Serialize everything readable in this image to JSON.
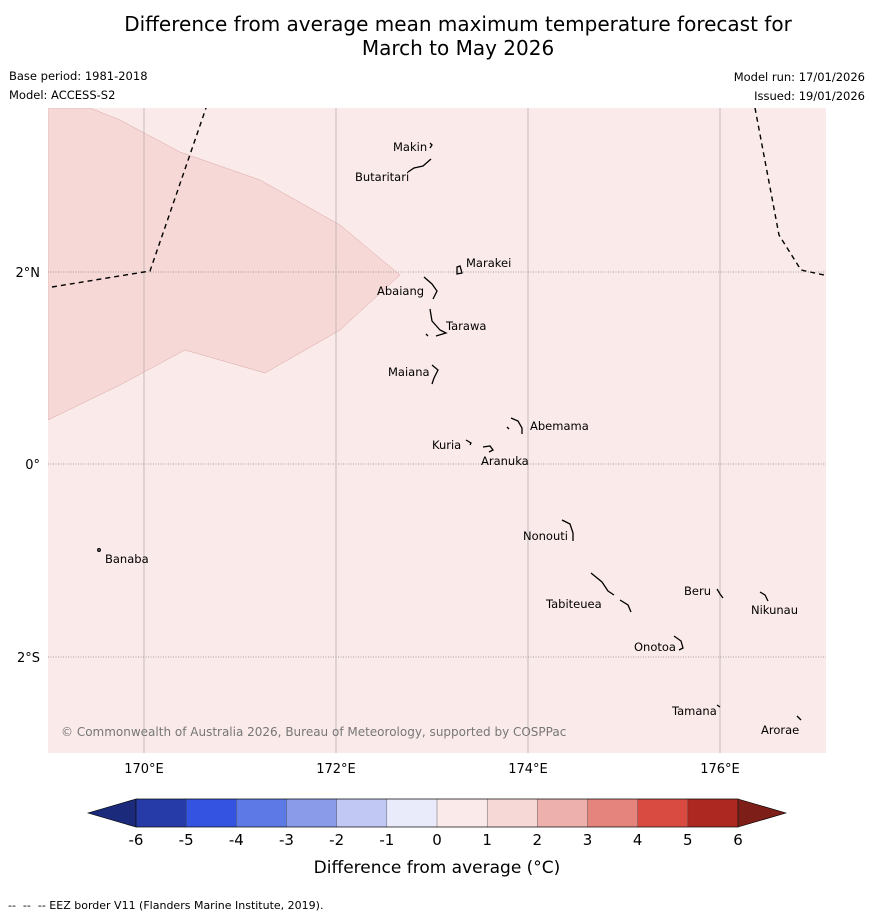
{
  "title_line1": "Difference from average mean maximum temperature forecast for",
  "title_line2": "March to May 2026",
  "meta": {
    "base_period": "Base period: 1981-2018",
    "model": "Model: ACCESS-S2",
    "model_run": "Model run: 17/01/2026",
    "issued": "Issued: 19/01/2026"
  },
  "axes": {
    "lon_ticks": [
      "170°E",
      "172°E",
      "174°E",
      "176°E"
    ],
    "lat_ticks": [
      "2°N",
      "0°",
      "2°S"
    ]
  },
  "islands": [
    "Makin",
    "Butaritari",
    "Marakei",
    "Abaiang",
    "Tarawa",
    "Maiana",
    "Abemama",
    "Kuria",
    "Aranuka",
    "Nonouti",
    "Banaba",
    "Beru",
    "Nikunau",
    "Tabiteuea",
    "Onotoa",
    "Tamana",
    "Arorae"
  ],
  "copyright": "© Commonwealth of Australia 2026, Bureau of Meteorology, supported by COSPPac",
  "colorbar": {
    "ticks": [
      "-6",
      "-5",
      "-4",
      "-3",
      "-2",
      "-1",
      "0",
      "1",
      "2",
      "3",
      "4",
      "5",
      "6"
    ],
    "colors": [
      "#263ba8",
      "#3453e0",
      "#5d79e6",
      "#8a9bea",
      "#c2c8f4",
      "#e9ebfa",
      "#fbeaea",
      "#f6d8d6",
      "#edb0ad",
      "#e5837d",
      "#d94a40",
      "#ac2820"
    ],
    "under_color": "#1b2a7a",
    "over_color": "#7d1e18",
    "label": "Difference from average (°C)"
  },
  "colors": {
    "base_anomaly": "#fbeaea",
    "warm_anomaly": "#f6d8d6"
  },
  "footer": "--  --  -- EEZ border V11 (Flanders Marine Institute, 2019)."
}
